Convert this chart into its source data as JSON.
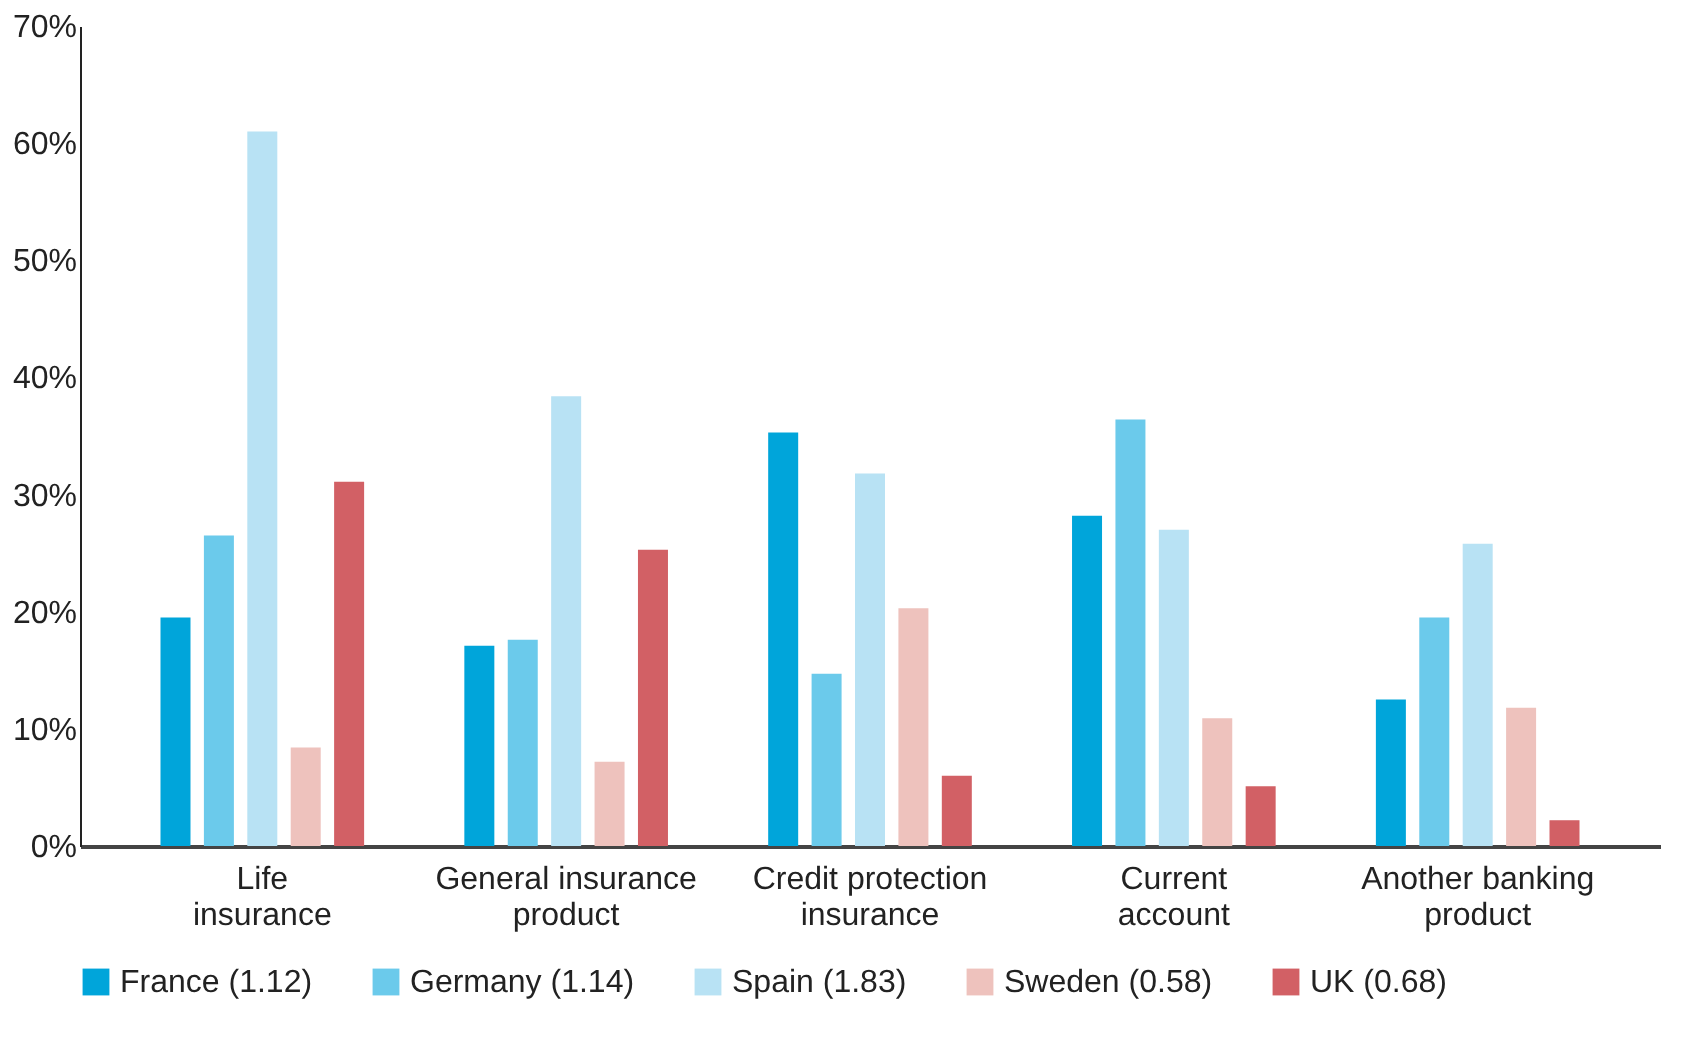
{
  "chart_data": {
    "type": "bar",
    "categories": [
      "Life insurance",
      "General insurance product",
      "Credit protection insurance",
      "Current account",
      "Another banking product"
    ],
    "series": [
      {
        "name": "France (1.12)",
        "color": "#00a5da",
        "values": [
          19.5,
          17.1,
          35.3,
          28.2,
          12.5
        ]
      },
      {
        "name": "Germany (1.14)",
        "color": "#6bcaeb",
        "values": [
          26.5,
          17.6,
          14.7,
          36.4,
          19.5
        ]
      },
      {
        "name": "Spain (1.83)",
        "color": "#b8e2f4",
        "values": [
          61.0,
          38.4,
          31.8,
          27.0,
          25.8
        ]
      },
      {
        "name": "Sweden (0.58)",
        "color": "#eec2bd",
        "values": [
          8.4,
          7.2,
          20.3,
          10.9,
          11.8
        ]
      },
      {
        "name": "UK (0.68)",
        "color": "#d26065",
        "values": [
          31.1,
          25.3,
          6.0,
          5.1,
          2.2
        ]
      }
    ],
    "ylim": [
      0,
      70
    ],
    "yticks": [
      {
        "value": 0,
        "label": "0%"
      },
      {
        "value": 10,
        "label": "10%"
      },
      {
        "value": 20,
        "label": "20%"
      },
      {
        "value": 30,
        "label": "30%"
      },
      {
        "value": 40,
        "label": "40%"
      },
      {
        "value": 50,
        "label": "50%"
      },
      {
        "value": 60,
        "label": "60%"
      },
      {
        "value": 70,
        "label": "70%"
      }
    ],
    "grid": false,
    "legend": "bottom"
  }
}
